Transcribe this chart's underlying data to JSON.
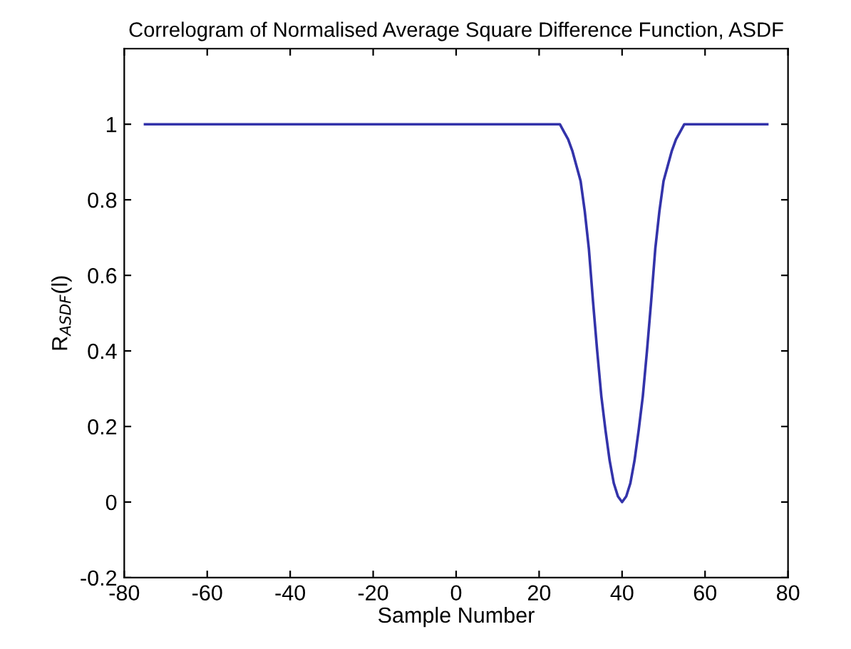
{
  "chart_data": {
    "type": "line",
    "title": "Correlogram of Normalised Average Square Difference Function, ASDF",
    "xlabel": "Sample Number",
    "ylabel": "R$_{ASDF}$(l)",
    "x": [
      -75,
      25,
      26,
      27,
      28,
      29,
      30,
      31,
      32,
      33,
      34,
      35,
      36,
      37,
      38,
      39,
      40,
      41,
      42,
      43,
      44,
      45,
      46,
      47,
      48,
      49,
      50,
      51,
      52,
      53,
      54,
      55,
      75
    ],
    "series": [
      {
        "color": "#3333aa",
        "values": [
          1,
          1,
          0.98,
          0.96,
          0.93,
          0.89,
          0.85,
          0.77,
          0.67,
          0.53,
          0.4,
          0.28,
          0.19,
          0.11,
          0.05,
          0.015,
          0,
          0.015,
          0.05,
          0.11,
          0.19,
          0.28,
          0.4,
          0.53,
          0.67,
          0.77,
          0.85,
          0.89,
          0.93,
          0.96,
          0.98,
          1,
          1
        ]
      }
    ],
    "xlim": [
      -80,
      80
    ],
    "xticks": [
      -80,
      -60,
      -40,
      -20,
      0,
      20,
      40,
      60,
      80
    ],
    "ylim": [
      -0.2,
      1.2
    ],
    "yticks": [
      -0.2,
      0,
      0.2,
      0.4,
      0.6,
      0.8,
      1
    ],
    "grid": false,
    "legend": false,
    "marker": "none",
    "line_style": "solid"
  }
}
